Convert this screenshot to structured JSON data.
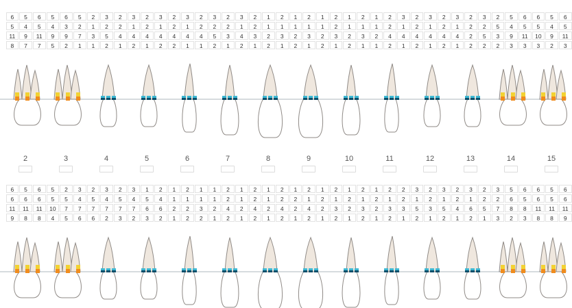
{
  "colors": {
    "crown_fill": "#ffffff",
    "root_fill": "#efe7de",
    "outline": "#8f8a86",
    "gumline": "#c9cfd4",
    "bar_yellow": "#f2d233",
    "bar_orange": "#f08c1e",
    "bar_teal": "#3db8d3",
    "bar_dark": "#0b4f6b"
  },
  "teeth": [
    {
      "number": "2",
      "type": "molar"
    },
    {
      "number": "3",
      "type": "molar"
    },
    {
      "number": "4",
      "type": "premolar"
    },
    {
      "number": "5",
      "type": "premolar"
    },
    {
      "number": "6",
      "type": "canine"
    },
    {
      "number": "7",
      "type": "incisor"
    },
    {
      "number": "8",
      "type": "central"
    },
    {
      "number": "9",
      "type": "central"
    },
    {
      "number": "10",
      "type": "incisor"
    },
    {
      "number": "11",
      "type": "canine"
    },
    {
      "number": "12",
      "type": "premolar"
    },
    {
      "number": "13",
      "type": "premolar"
    },
    {
      "number": "14",
      "type": "molar"
    },
    {
      "number": "15",
      "type": "molar"
    }
  ],
  "upper_rows": [
    [
      [
        6,
        5,
        6
      ],
      [
        5,
        6,
        5
      ],
      [
        2,
        3,
        2
      ],
      [
        3,
        2,
        3
      ],
      [
        2,
        3,
        2
      ],
      [
        3,
        2,
        3
      ],
      [
        2,
        1,
        2
      ],
      [
        1,
        2,
        1
      ],
      [
        2,
        1,
        2
      ],
      [
        1,
        2,
        3
      ],
      [
        2,
        3,
        2
      ],
      [
        3,
        2,
        3
      ],
      [
        2,
        5,
        6
      ],
      [
        6,
        5,
        6
      ]
    ],
    [
      [
        5,
        4,
        5
      ],
      [
        4,
        3,
        2
      ],
      [
        1,
        2,
        2
      ],
      [
        1,
        2,
        1
      ],
      [
        2,
        1,
        2
      ],
      [
        2,
        2,
        1
      ],
      [
        2,
        1,
        1
      ],
      [
        1,
        1,
        1
      ],
      [
        2,
        1,
        1
      ],
      [
        1,
        2,
        1
      ],
      [
        2,
        1,
        2
      ],
      [
        1,
        2,
        2
      ],
      [
        5,
        4,
        5
      ],
      [
        5,
        4,
        5
      ]
    ],
    [
      [
        11,
        9,
        11
      ],
      [
        9,
        9,
        7
      ],
      [
        3,
        5,
        4
      ],
      [
        4,
        4,
        4
      ],
      [
        4,
        4,
        4
      ],
      [
        5,
        3,
        4
      ],
      [
        3,
        2,
        3
      ],
      [
        2,
        3,
        2
      ],
      [
        3,
        2,
        3
      ],
      [
        2,
        4,
        4
      ],
      [
        4,
        4,
        4
      ],
      [
        4,
        2,
        5
      ],
      [
        3,
        9,
        11
      ],
      [
        10,
        9,
        11
      ]
    ],
    [
      [
        8,
        7,
        7
      ],
      [
        5,
        2,
        1
      ],
      [
        1,
        2,
        1
      ],
      [
        2,
        1,
        2
      ],
      [
        2,
        1,
        1
      ],
      [
        2,
        1,
        2
      ],
      [
        1,
        2,
        1
      ],
      [
        2,
        1,
        2
      ],
      [
        1,
        2,
        1
      ],
      [
        1,
        2,
        1
      ],
      [
        2,
        1,
        2
      ],
      [
        1,
        2,
        2
      ],
      [
        2,
        3,
        3
      ],
      [
        3,
        2,
        3
      ]
    ]
  ],
  "lower_rows": [
    [
      [
        6,
        5,
        6
      ],
      [
        5,
        2,
        3
      ],
      [
        2,
        3,
        2
      ],
      [
        3,
        1,
        2
      ],
      [
        1,
        2,
        1
      ],
      [
        1,
        2,
        1
      ],
      [
        2,
        1,
        2
      ],
      [
        1,
        2,
        1
      ],
      [
        2,
        1,
        2
      ],
      [
        1,
        2,
        2
      ],
      [
        3,
        2,
        3
      ],
      [
        2,
        3,
        2
      ],
      [
        3,
        5,
        6
      ],
      [
        6,
        5,
        6
      ]
    ],
    [
      [
        6,
        6,
        6
      ],
      [
        5,
        5,
        4
      ],
      [
        5,
        4,
        5
      ],
      [
        4,
        5,
        4
      ],
      [
        1,
        1,
        1
      ],
      [
        1,
        2,
        1
      ],
      [
        2,
        1,
        2
      ],
      [
        2,
        1,
        2
      ],
      [
        1,
        2,
        1
      ],
      [
        2,
        1,
        2
      ],
      [
        1,
        2,
        1
      ],
      [
        2,
        1,
        2
      ],
      [
        2,
        6,
        5
      ],
      [
        6,
        5,
        6
      ]
    ],
    [
      [
        11,
        11,
        11
      ],
      [
        10,
        7,
        7
      ],
      [
        7,
        7,
        7
      ],
      [
        7,
        6,
        6
      ],
      [
        2,
        2,
        3
      ],
      [
        2,
        4,
        2
      ],
      [
        4,
        2,
        4
      ],
      [
        2,
        4,
        2
      ],
      [
        3,
        2,
        3
      ],
      [
        2,
        3,
        3
      ],
      [
        5,
        3,
        5
      ],
      [
        4,
        6,
        5
      ],
      [
        7,
        8,
        8
      ],
      [
        11,
        11,
        11
      ]
    ],
    [
      [
        9,
        8,
        8
      ],
      [
        4,
        5,
        6
      ],
      [
        6,
        2,
        3
      ],
      [
        2,
        3,
        2
      ],
      [
        1,
        2,
        2
      ],
      [
        1,
        2,
        1
      ],
      [
        2,
        1,
        2
      ],
      [
        1,
        2,
        1
      ],
      [
        2,
        1,
        2
      ],
      [
        1,
        2,
        1
      ],
      [
        2,
        1,
        2
      ],
      [
        1,
        2,
        1
      ],
      [
        3,
        2,
        3
      ],
      [
        8,
        8,
        9
      ]
    ]
  ]
}
